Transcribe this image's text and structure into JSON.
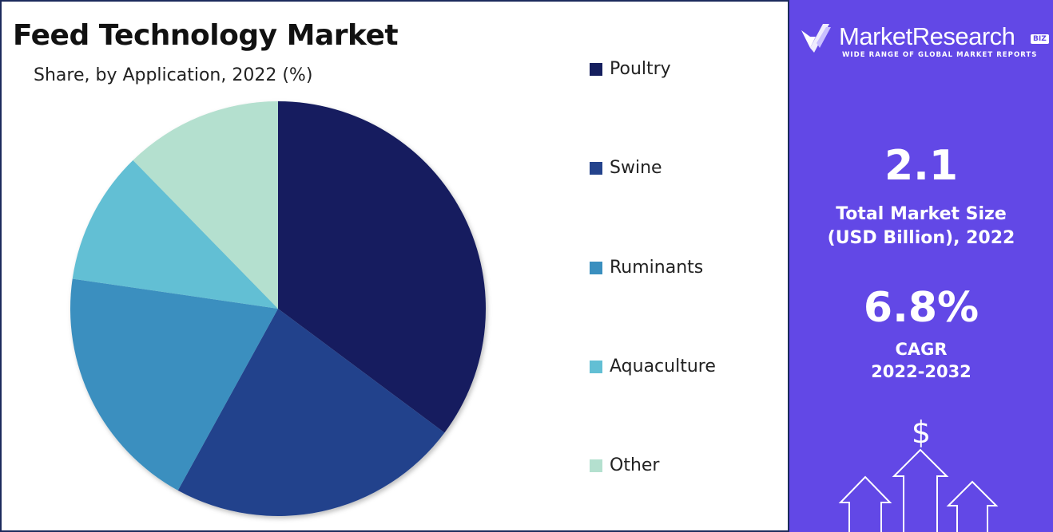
{
  "chart_data": {
    "type": "pie",
    "title": "Feed Technology Market",
    "subtitle": "Share, by Application, 2022 (%)",
    "categories": [
      "Poultry",
      "Swine",
      "Ruminants",
      "Aquaculture",
      "Other"
    ],
    "values": [
      35.2,
      22.8,
      19.3,
      10.4,
      12.3
    ],
    "colors": [
      "#151f5e",
      "#24438c",
      "#3a8fbf",
      "#62bfd4",
      "#b4e0cf"
    ],
    "legend_position": "right",
    "start_angle": "top, clockwise"
  },
  "side_panel": {
    "logo_text": "MarketResearch",
    "logo_badge": "BIZ",
    "logo_tagline": "WIDE RANGE OF GLOBAL MARKET REPORTS",
    "market_size_value": "2.1",
    "market_size_label_line1": "Total Market Size",
    "market_size_label_line2": "(USD Billion), 2022",
    "cagr_value": "6.8%",
    "cagr_label": "CAGR",
    "cagr_period": "2022-2032",
    "dollar_symbol": "$",
    "colors": {
      "background": "#6248e6",
      "text": "#ffffff"
    }
  }
}
